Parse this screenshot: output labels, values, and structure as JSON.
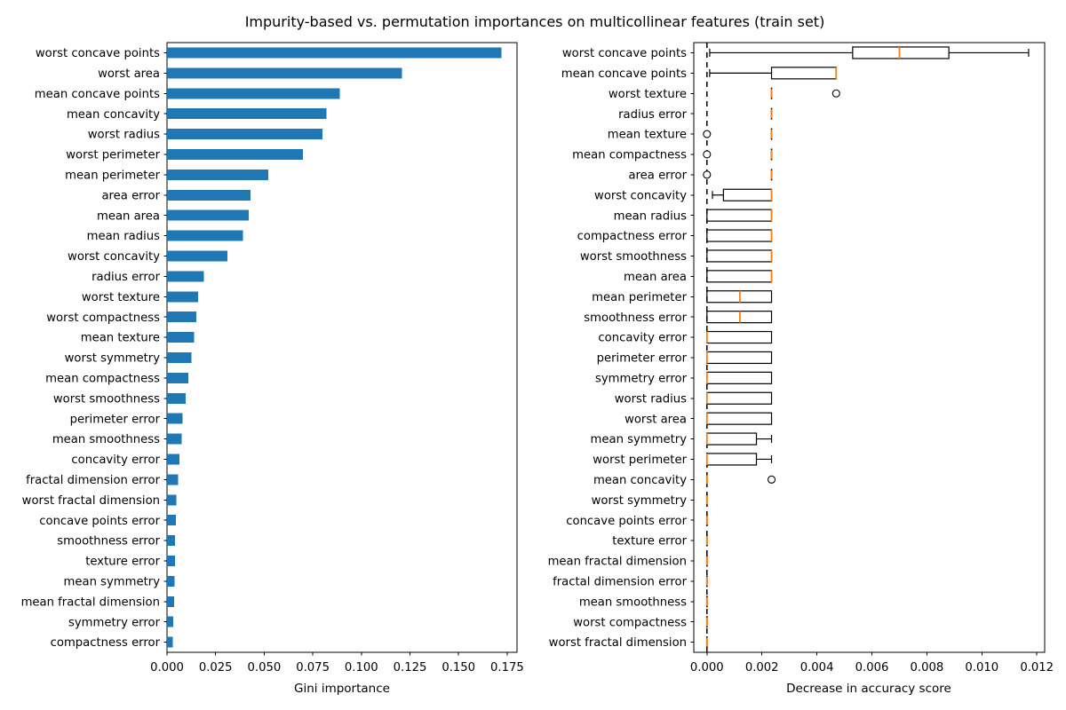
{
  "title": "Impurity-based vs. permutation importances on multicollinear features (train set)",
  "colors": {
    "bar": "#1f77b4",
    "median": "#ff7f0e",
    "box_edge": "#000000",
    "zero_line": "#000000",
    "text": "#000000"
  },
  "chart_data": [
    {
      "type": "bar",
      "orientation": "horizontal",
      "xlabel": "Gini importance",
      "xlim": [
        0,
        0.18
      ],
      "xticks": [
        0.0,
        0.025,
        0.05,
        0.075,
        0.1,
        0.125,
        0.15,
        0.175
      ],
      "xtick_labels": [
        "0.000",
        "0.025",
        "0.050",
        "0.075",
        "0.100",
        "0.125",
        "0.150",
        "0.175"
      ],
      "grid": false,
      "bar_color": "#1f77b4",
      "categories": [
        "worst concave points",
        "worst area",
        "mean concave points",
        "mean concavity",
        "worst radius",
        "worst perimeter",
        "mean perimeter",
        "area error",
        "mean area",
        "mean radius",
        "worst concavity",
        "radius error",
        "worst texture",
        "worst compactness",
        "mean texture",
        "worst symmetry",
        "mean compactness",
        "worst smoothness",
        "perimeter error",
        "mean smoothness",
        "concavity error",
        "fractal dimension error",
        "worst fractal dimension",
        "concave points error",
        "smoothness error",
        "texture error",
        "mean symmetry",
        "mean fractal dimension",
        "symmetry error",
        "compactness error"
      ],
      "values": [
        0.172,
        0.121,
        0.089,
        0.082,
        0.08,
        0.07,
        0.052,
        0.043,
        0.042,
        0.039,
        0.031,
        0.019,
        0.016,
        0.015,
        0.014,
        0.0125,
        0.011,
        0.0095,
        0.008,
        0.0075,
        0.0065,
        0.0058,
        0.0047,
        0.0045,
        0.0042,
        0.004,
        0.0038,
        0.0036,
        0.0033,
        0.003
      ]
    },
    {
      "type": "boxplot",
      "orientation": "horizontal",
      "xlabel": "Decrease in accuracy score",
      "xlim": [
        -0.0005,
        0.0123
      ],
      "xticks": [
        0.0,
        0.002,
        0.004,
        0.006,
        0.008,
        0.01,
        0.012
      ],
      "xtick_labels": [
        "0.000",
        "0.002",
        "0.004",
        "0.006",
        "0.008",
        "0.010",
        "0.012"
      ],
      "grid": false,
      "zero_line": {
        "x": 0,
        "style": "dashed"
      },
      "categories": [
        "worst concave points",
        "mean concave points",
        "worst texture",
        "radius error",
        "mean texture",
        "mean compactness",
        "area error",
        "worst concavity",
        "mean radius",
        "compactness error",
        "worst smoothness",
        "mean area",
        "mean perimeter",
        "smoothness error",
        "concavity error",
        "perimeter error",
        "symmetry error",
        "worst radius",
        "worst area",
        "mean symmetry",
        "worst perimeter",
        "mean concavity",
        "worst symmetry",
        "concave points error",
        "texture error",
        "mean fractal dimension",
        "fractal dimension error",
        "mean smoothness",
        "worst compactness",
        "worst fractal dimension"
      ],
      "boxes": [
        {
          "lo": 0.0001,
          "q1": 0.0053,
          "med": 0.007,
          "q3": 0.0088,
          "hi": 0.0117,
          "outliers": []
        },
        {
          "lo": 0.0001,
          "q1": 0.00235,
          "med": 0.0047,
          "q3": 0.0047,
          "hi": 0.0047,
          "outliers": []
        },
        {
          "lo": 0.00235,
          "q1": 0.00235,
          "med": 0.00235,
          "q3": 0.00235,
          "hi": 0.00235,
          "outliers": [
            0.0047
          ]
        },
        {
          "lo": 0.00235,
          "q1": 0.00235,
          "med": 0.00235,
          "q3": 0.00235,
          "hi": 0.00235,
          "outliers": []
        },
        {
          "lo": 0.00235,
          "q1": 0.00235,
          "med": 0.00235,
          "q3": 0.00235,
          "hi": 0.00235,
          "outliers": [
            0.0
          ]
        },
        {
          "lo": 0.00235,
          "q1": 0.00235,
          "med": 0.00235,
          "q3": 0.00235,
          "hi": 0.00235,
          "outliers": [
            0.0
          ]
        },
        {
          "lo": 0.00235,
          "q1": 0.00235,
          "med": 0.00235,
          "q3": 0.00235,
          "hi": 0.00235,
          "outliers": [
            0.0
          ]
        },
        {
          "lo": 0.0002,
          "q1": 0.0006,
          "med": 0.00235,
          "q3": 0.00235,
          "hi": 0.00235,
          "outliers": []
        },
        {
          "lo": 0.0,
          "q1": 0.0,
          "med": 0.00235,
          "q3": 0.00235,
          "hi": 0.00235,
          "outliers": []
        },
        {
          "lo": 0.0,
          "q1": 0.0,
          "med": 0.00235,
          "q3": 0.00235,
          "hi": 0.00235,
          "outliers": []
        },
        {
          "lo": 0.0,
          "q1": 0.0,
          "med": 0.00235,
          "q3": 0.00235,
          "hi": 0.00235,
          "outliers": []
        },
        {
          "lo": 0.0,
          "q1": 0.0,
          "med": 0.00235,
          "q3": 0.00235,
          "hi": 0.00235,
          "outliers": []
        },
        {
          "lo": 0.0,
          "q1": 0.0,
          "med": 0.0012,
          "q3": 0.00235,
          "hi": 0.00235,
          "outliers": []
        },
        {
          "lo": 0.0,
          "q1": 0.0,
          "med": 0.0012,
          "q3": 0.00235,
          "hi": 0.00235,
          "outliers": []
        },
        {
          "lo": 0.0,
          "q1": 0.0,
          "med": 0.0,
          "q3": 0.00235,
          "hi": 0.00235,
          "outliers": []
        },
        {
          "lo": 0.0,
          "q1": 0.0,
          "med": 0.0,
          "q3": 0.00235,
          "hi": 0.00235,
          "outliers": []
        },
        {
          "lo": 0.0,
          "q1": 0.0,
          "med": 0.0,
          "q3": 0.00235,
          "hi": 0.00235,
          "outliers": []
        },
        {
          "lo": 0.0,
          "q1": 0.0,
          "med": 0.0,
          "q3": 0.00235,
          "hi": 0.00235,
          "outliers": []
        },
        {
          "lo": 0.0,
          "q1": 0.0,
          "med": 0.0,
          "q3": 0.00235,
          "hi": 0.00235,
          "outliers": []
        },
        {
          "lo": 0.0,
          "q1": 0.0,
          "med": 0.0,
          "q3": 0.0018,
          "hi": 0.00235,
          "outliers": []
        },
        {
          "lo": 0.0,
          "q1": 0.0,
          "med": 0.0,
          "q3": 0.0018,
          "hi": 0.00235,
          "outliers": []
        },
        {
          "lo": 0.0,
          "q1": 0.0,
          "med": 0.0,
          "q3": 0.0,
          "hi": 0.0,
          "outliers": [
            0.00235
          ]
        },
        {
          "lo": 0.0,
          "q1": 0.0,
          "med": 0.0,
          "q3": 0.0,
          "hi": 0.0,
          "outliers": []
        },
        {
          "lo": 0.0,
          "q1": 0.0,
          "med": 0.0,
          "q3": 0.0,
          "hi": 0.0,
          "outliers": []
        },
        {
          "lo": 0.0,
          "q1": 0.0,
          "med": 0.0,
          "q3": 0.0,
          "hi": 0.0,
          "outliers": []
        },
        {
          "lo": 0.0,
          "q1": 0.0,
          "med": 0.0,
          "q3": 0.0,
          "hi": 0.0,
          "outliers": []
        },
        {
          "lo": 0.0,
          "q1": 0.0,
          "med": 0.0,
          "q3": 0.0,
          "hi": 0.0,
          "outliers": []
        },
        {
          "lo": 0.0,
          "q1": 0.0,
          "med": 0.0,
          "q3": 0.0,
          "hi": 0.0,
          "outliers": []
        },
        {
          "lo": 0.0,
          "q1": 0.0,
          "med": 0.0,
          "q3": 0.0,
          "hi": 0.0,
          "outliers": []
        },
        {
          "lo": 0.0,
          "q1": 0.0,
          "med": 0.0,
          "q3": 0.0,
          "hi": 0.0,
          "outliers": []
        }
      ]
    }
  ]
}
